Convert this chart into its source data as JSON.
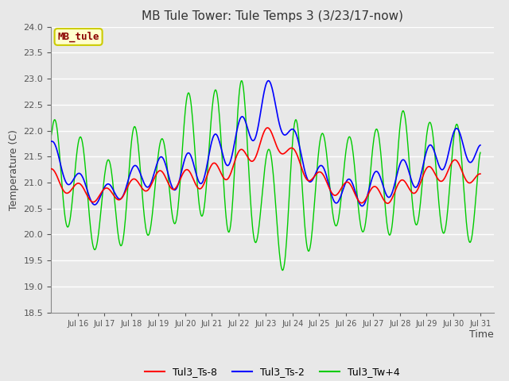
{
  "title": "MB Tule Tower: Tule Temps 3 (3/23/17-now)",
  "xlabel": "Time",
  "ylabel": "Temperature (C)",
  "ylim": [
    18.5,
    24.0
  ],
  "yticks": [
    18.5,
    19.0,
    19.5,
    20.0,
    20.5,
    21.0,
    21.5,
    22.0,
    22.5,
    23.0,
    23.5,
    24.0
  ],
  "legend_labels": [
    "Tul3_Ts-8",
    "Tul3_Ts-2",
    "Tul3_Tw+4"
  ],
  "annotation_text": "MB_tule",
  "annotation_color": "#8B0000",
  "annotation_bg": "#FFFFCC",
  "annotation_border": "#CCCC00",
  "bg_color": "#E8E8E8",
  "grid_color": "white",
  "xtick_labels": [
    "Jul 16",
    "Jul 17",
    "Jul 18",
    "Jul 19",
    "Jul 20",
    "Jul 21",
    "Jul 22",
    "Jul 23",
    "Jul 24",
    "Jul 25",
    "Jul 26",
    "Jul 27",
    "Jul 28",
    "Jul 29",
    "Jul 30",
    "Jul 31"
  ],
  "title_fontsize": 11,
  "axis_label_fontsize": 9,
  "tick_fontsize": 8
}
